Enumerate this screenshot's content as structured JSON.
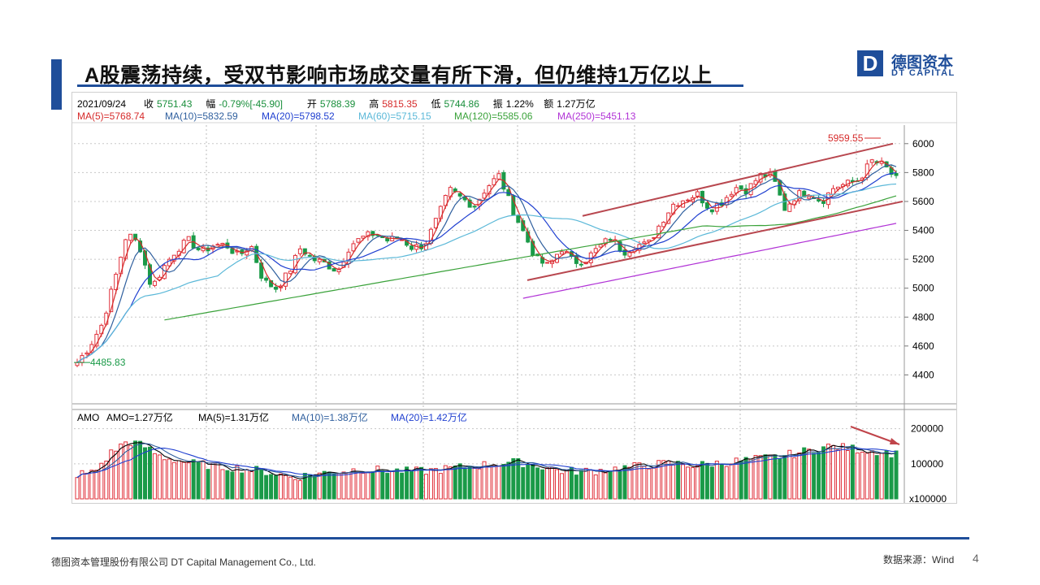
{
  "slide": {
    "title": "A股震荡持续，受双节影响市场成交量有所下滑，但仍维持1万亿以上",
    "logo_cn": "德图资本",
    "logo_en": "DT CAPITAL",
    "logo_letter": "D",
    "footer_left": "德图资本管理股份有限公司  DT Capital Management  Co., Ltd.",
    "footer_right": "数据来源：Wind",
    "page_number": "4"
  },
  "info": {
    "date": "2021/09/24",
    "items": [
      {
        "label": "收",
        "value": "5751.43",
        "color": "#1a8f3c"
      },
      {
        "label": "幅",
        "value": "-0.79%[-45.90]",
        "color": "#1a8f3c"
      },
      {
        "label": "开",
        "value": "5788.39",
        "color": "#1a8f3c"
      },
      {
        "label": "高",
        "value": "5815.35",
        "color": "#d62a2a"
      },
      {
        "label": "低",
        "value": "5744.86",
        "color": "#1a8f3c"
      },
      {
        "label": "振",
        "value": "1.22%",
        "color": "#000000"
      },
      {
        "label": "额",
        "value": "1.27万亿",
        "color": "#000000"
      }
    ]
  },
  "ma_legend": [
    {
      "text": "MA(5)=5768.74",
      "color": "#d62a2a"
    },
    {
      "text": "MA(10)=5832.59",
      "color": "#2f5f9e"
    },
    {
      "text": "MA(20)=5798.52",
      "color": "#1f3fd0"
    },
    {
      "text": "MA(60)=5715.15",
      "color": "#5bb8d8"
    },
    {
      "text": "MA(120)=5585.06",
      "color": "#3aa23a"
    },
    {
      "text": "MA(250)=5451.13",
      "color": "#b133d6"
    }
  ],
  "amo_legend": [
    {
      "text": "AMO",
      "color": "#000000"
    },
    {
      "text": "AMO=1.27万亿",
      "color": "#000000"
    },
    {
      "text": "MA(5)=1.31万亿",
      "color": "#000000"
    },
    {
      "text": "MA(10)=1.38万亿",
      "color": "#2f5f9e"
    },
    {
      "text": "MA(20)=1.42万亿",
      "color": "#1f3fd0"
    }
  ],
  "annotations": {
    "high_label": "5959.55",
    "low_label": "4485.83"
  },
  "chart_data": [
    {
      "type": "candlestick",
      "title": "",
      "y_ticks": [
        6000,
        5800,
        5600,
        5400,
        5200,
        5000,
        4800,
        4600,
        4400
      ],
      "ylim": [
        4200,
        6100
      ],
      "grid": true,
      "series": [
        {
          "name": "MA(5)",
          "value": 5768.74
        },
        {
          "name": "MA(10)",
          "value": 5832.59
        },
        {
          "name": "MA(20)",
          "value": 5798.52
        },
        {
          "name": "MA(60)",
          "value": 5715.15
        },
        {
          "name": "MA(120)",
          "value": 5585.06
        },
        {
          "name": "MA(250)",
          "value": 5451.13
        }
      ],
      "close_path": [
        4485.83,
        4600,
        4750,
        5050,
        5380,
        5300,
        5000,
        5150,
        5270,
        5330,
        5250,
        5300,
        5300,
        5220,
        5300,
        5050,
        5000,
        5100,
        5280,
        5200,
        5170,
        5120,
        5300,
        5350,
        5380,
        5330,
        5350,
        5280,
        5300,
        5480,
        5680,
        5620,
        5570,
        5700,
        5780,
        5560,
        5380,
        5200,
        5150,
        5280,
        5180,
        5200,
        5280,
        5350,
        5250,
        5300,
        5300,
        5450,
        5580,
        5620,
        5650,
        5550,
        5600,
        5700,
        5680,
        5780,
        5780,
        5550,
        5650,
        5660,
        5600,
        5700,
        5720,
        5750,
        5880,
        5850,
        5751.43
      ],
      "high_mark": 5959.55
    },
    {
      "type": "bar",
      "title": "AMO",
      "y_ticks": [
        200000,
        100000
      ],
      "unit_label": "x100000",
      "ylim": [
        0,
        220000
      ],
      "series": [
        {
          "name": "AMO",
          "value": "1.27万亿"
        },
        {
          "name": "MA(5)",
          "value": "1.31万亿"
        },
        {
          "name": "MA(10)",
          "value": "1.38万亿"
        },
        {
          "name": "MA(20)",
          "value": "1.42万亿"
        }
      ],
      "amount_path": [
        70000,
        75000,
        130000,
        165000,
        150000,
        120000,
        110000,
        100000,
        95000,
        90000,
        85000,
        80000,
        70000,
        60000,
        70000,
        75000,
        80000,
        85000,
        82000,
        80000,
        78000,
        80000,
        85000,
        90000,
        95000,
        100000,
        105000,
        100000,
        90000,
        80000,
        78000,
        80000,
        85000,
        90000,
        95000,
        100000,
        100000,
        95000,
        100000,
        105000,
        110000,
        115000,
        120000,
        130000,
        140000,
        150000,
        145000,
        140000,
        135000,
        127000
      ]
    }
  ]
}
